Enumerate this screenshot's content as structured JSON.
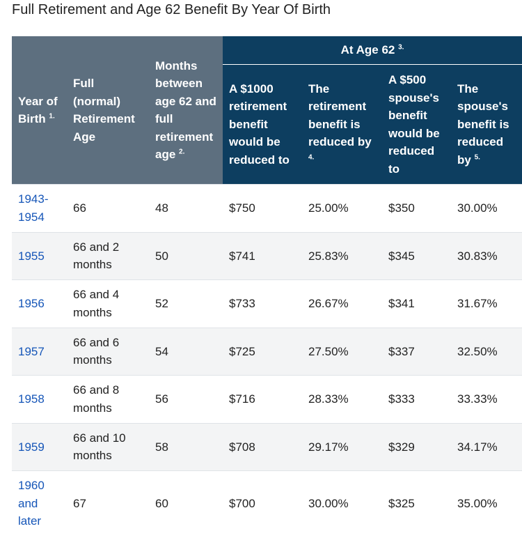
{
  "title": "Full Retirement and Age 62 Benefit By Year Of Birth",
  "header": {
    "year_of_birth": "Year of Birth",
    "year_of_birth_note": "1.",
    "full_retirement_age": "Full (normal) Retirement Age",
    "months_between": "Months between age 62 and full retirement age",
    "months_between_note": "2.",
    "group": "At Age 62",
    "group_note": "3.",
    "reduced_1000": "A $1000 retirement benefit would be reduced to",
    "retirement_reduced_by": "The retirement benefit is reduced by",
    "retirement_reduced_by_note": "4.",
    "spouse_500": "A $500 spouse's benefit would be reduced to",
    "spouse_reduced_by": "The spouse's benefit is reduced by",
    "spouse_reduced_by_note": "5."
  },
  "rows": [
    {
      "year": "1943-1954",
      "fra": "66",
      "months": "48",
      "r1000": "$750",
      "rpct": "25.00%",
      "s500": "$350",
      "spct": "30.00%"
    },
    {
      "year": "1955",
      "fra": "66 and 2 months",
      "months": "50",
      "r1000": "$741",
      "rpct": "25.83%",
      "s500": "$345",
      "spct": "30.83%"
    },
    {
      "year": "1956",
      "fra": "66 and 4 months",
      "months": "52",
      "r1000": "$733",
      "rpct": "26.67%",
      "s500": "$341",
      "spct": "31.67%"
    },
    {
      "year": "1957",
      "fra": "66 and 6 months",
      "months": "54",
      "r1000": "$725",
      "rpct": "27.50%",
      "s500": "$337",
      "spct": "32.50%"
    },
    {
      "year": "1958",
      "fra": "66 and 8 months",
      "months": "56",
      "r1000": "$716",
      "rpct": "28.33%",
      "s500": "$333",
      "spct": "33.33%"
    },
    {
      "year": "1959",
      "fra": "66 and 10 months",
      "months": "58",
      "r1000": "$708",
      "rpct": "29.17%",
      "s500": "$329",
      "spct": "34.17%"
    },
    {
      "year": "1960 and later",
      "fra": "67",
      "months": "60",
      "r1000": "$700",
      "rpct": "30.00%",
      "s500": "$325",
      "spct": "35.00%"
    }
  ]
}
